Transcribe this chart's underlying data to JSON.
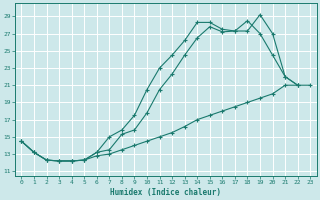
{
  "title": "",
  "xlabel": "Humidex (Indice chaleur)",
  "bg_color": "#cde8ea",
  "grid_color": "#ffffff",
  "line_color": "#1a7a6e",
  "xlim": [
    -0.5,
    23.5
  ],
  "ylim": [
    10.5,
    30.5
  ],
  "xticks": [
    0,
    1,
    2,
    3,
    4,
    5,
    6,
    7,
    8,
    9,
    10,
    11,
    12,
    13,
    14,
    15,
    16,
    17,
    18,
    19,
    20,
    21,
    22,
    23
  ],
  "yticks": [
    11,
    13,
    15,
    17,
    19,
    21,
    23,
    25,
    27,
    29
  ],
  "line1_x": [
    0,
    1,
    2,
    3,
    4,
    5,
    6,
    7,
    8,
    9,
    10,
    11,
    12,
    13,
    14,
    15,
    16,
    17,
    18,
    19,
    20,
    21,
    22
  ],
  "line1_y": [
    14.5,
    13.2,
    12.3,
    12.2,
    12.2,
    12.3,
    13.2,
    15.0,
    15.8,
    17.5,
    20.5,
    23.0,
    24.5,
    26.2,
    28.3,
    28.3,
    27.5,
    27.3,
    27.3,
    29.2,
    27.0,
    22.0,
    21.0
  ],
  "line2_x": [
    0,
    1,
    2,
    3,
    4,
    5,
    6,
    7,
    8,
    9,
    10,
    11,
    12,
    13,
    14,
    15,
    16,
    17,
    18,
    19,
    20,
    21,
    22
  ],
  "line2_y": [
    14.5,
    13.2,
    12.3,
    12.2,
    12.2,
    12.3,
    13.2,
    13.5,
    15.3,
    15.8,
    17.8,
    20.5,
    22.3,
    24.5,
    26.5,
    27.8,
    27.2,
    27.3,
    28.5,
    27.0,
    24.5,
    22.0,
    21.0
  ],
  "line3_x": [
    0,
    1,
    2,
    3,
    4,
    5,
    6,
    7,
    8,
    9,
    10,
    11,
    12,
    13,
    14,
    15,
    16,
    17,
    18,
    19,
    20,
    21,
    22,
    23
  ],
  "line3_y": [
    14.5,
    13.2,
    12.3,
    12.2,
    12.2,
    12.3,
    12.8,
    13.0,
    13.5,
    14.0,
    14.5,
    15.0,
    15.5,
    16.2,
    17.0,
    17.5,
    18.0,
    18.5,
    19.0,
    19.5,
    20.0,
    21.0,
    21.0,
    21.0
  ]
}
